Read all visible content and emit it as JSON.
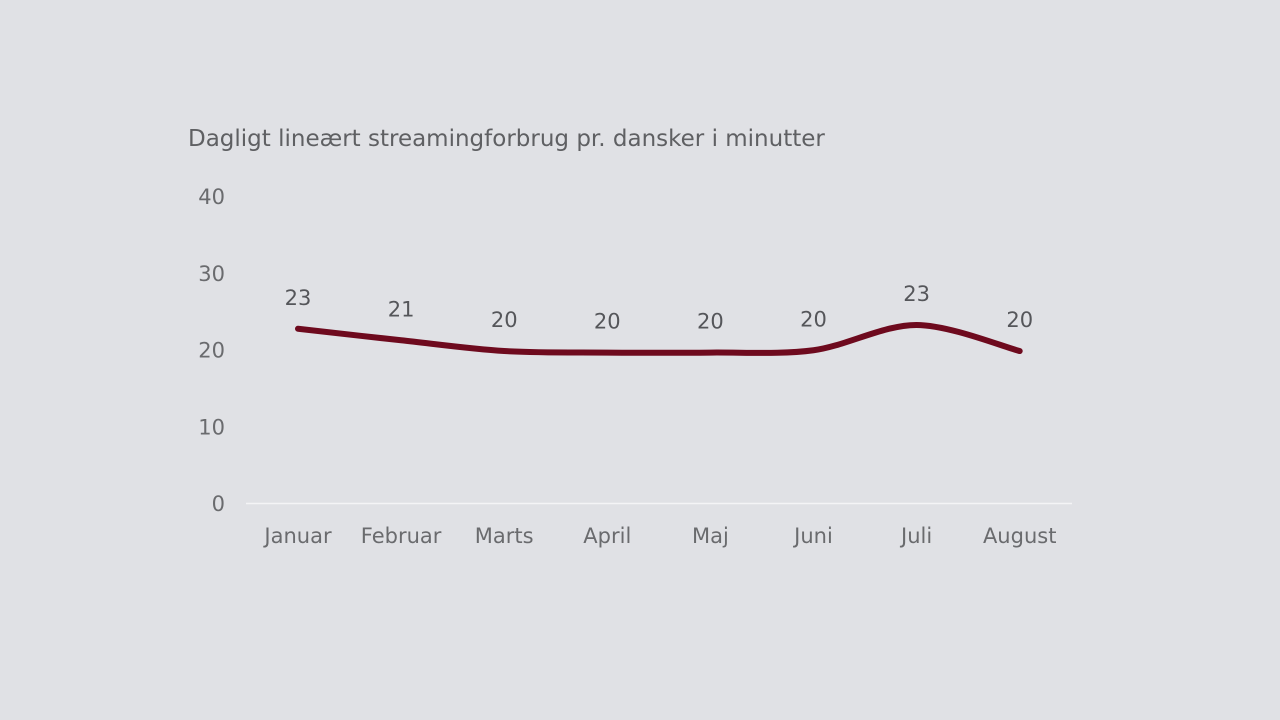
{
  "chart_data": {
    "type": "line",
    "title": "Dagligt lineært streamingforbrug pr. dansker i minutter",
    "xlabel": "",
    "ylabel": "",
    "categories": [
      "Januar",
      "Februar",
      "Marts",
      "April",
      "Maj",
      "Juni",
      "Juli",
      "August"
    ],
    "series": [
      {
        "values": [
          22.7,
          21.2,
          19.8,
          19.6,
          19.6,
          19.9,
          23.2,
          19.8
        ],
        "data_labels": [
          "23",
          "21",
          "20",
          "20",
          "20",
          "20",
          "23",
          "20"
        ],
        "color": "#6e0a1e"
      }
    ],
    "ylim": [
      0,
      40
    ],
    "yticks": [
      "0",
      "10",
      "20",
      "30",
      "40"
    ],
    "grid": false,
    "smooth": true,
    "background": "#e0e1e5"
  }
}
